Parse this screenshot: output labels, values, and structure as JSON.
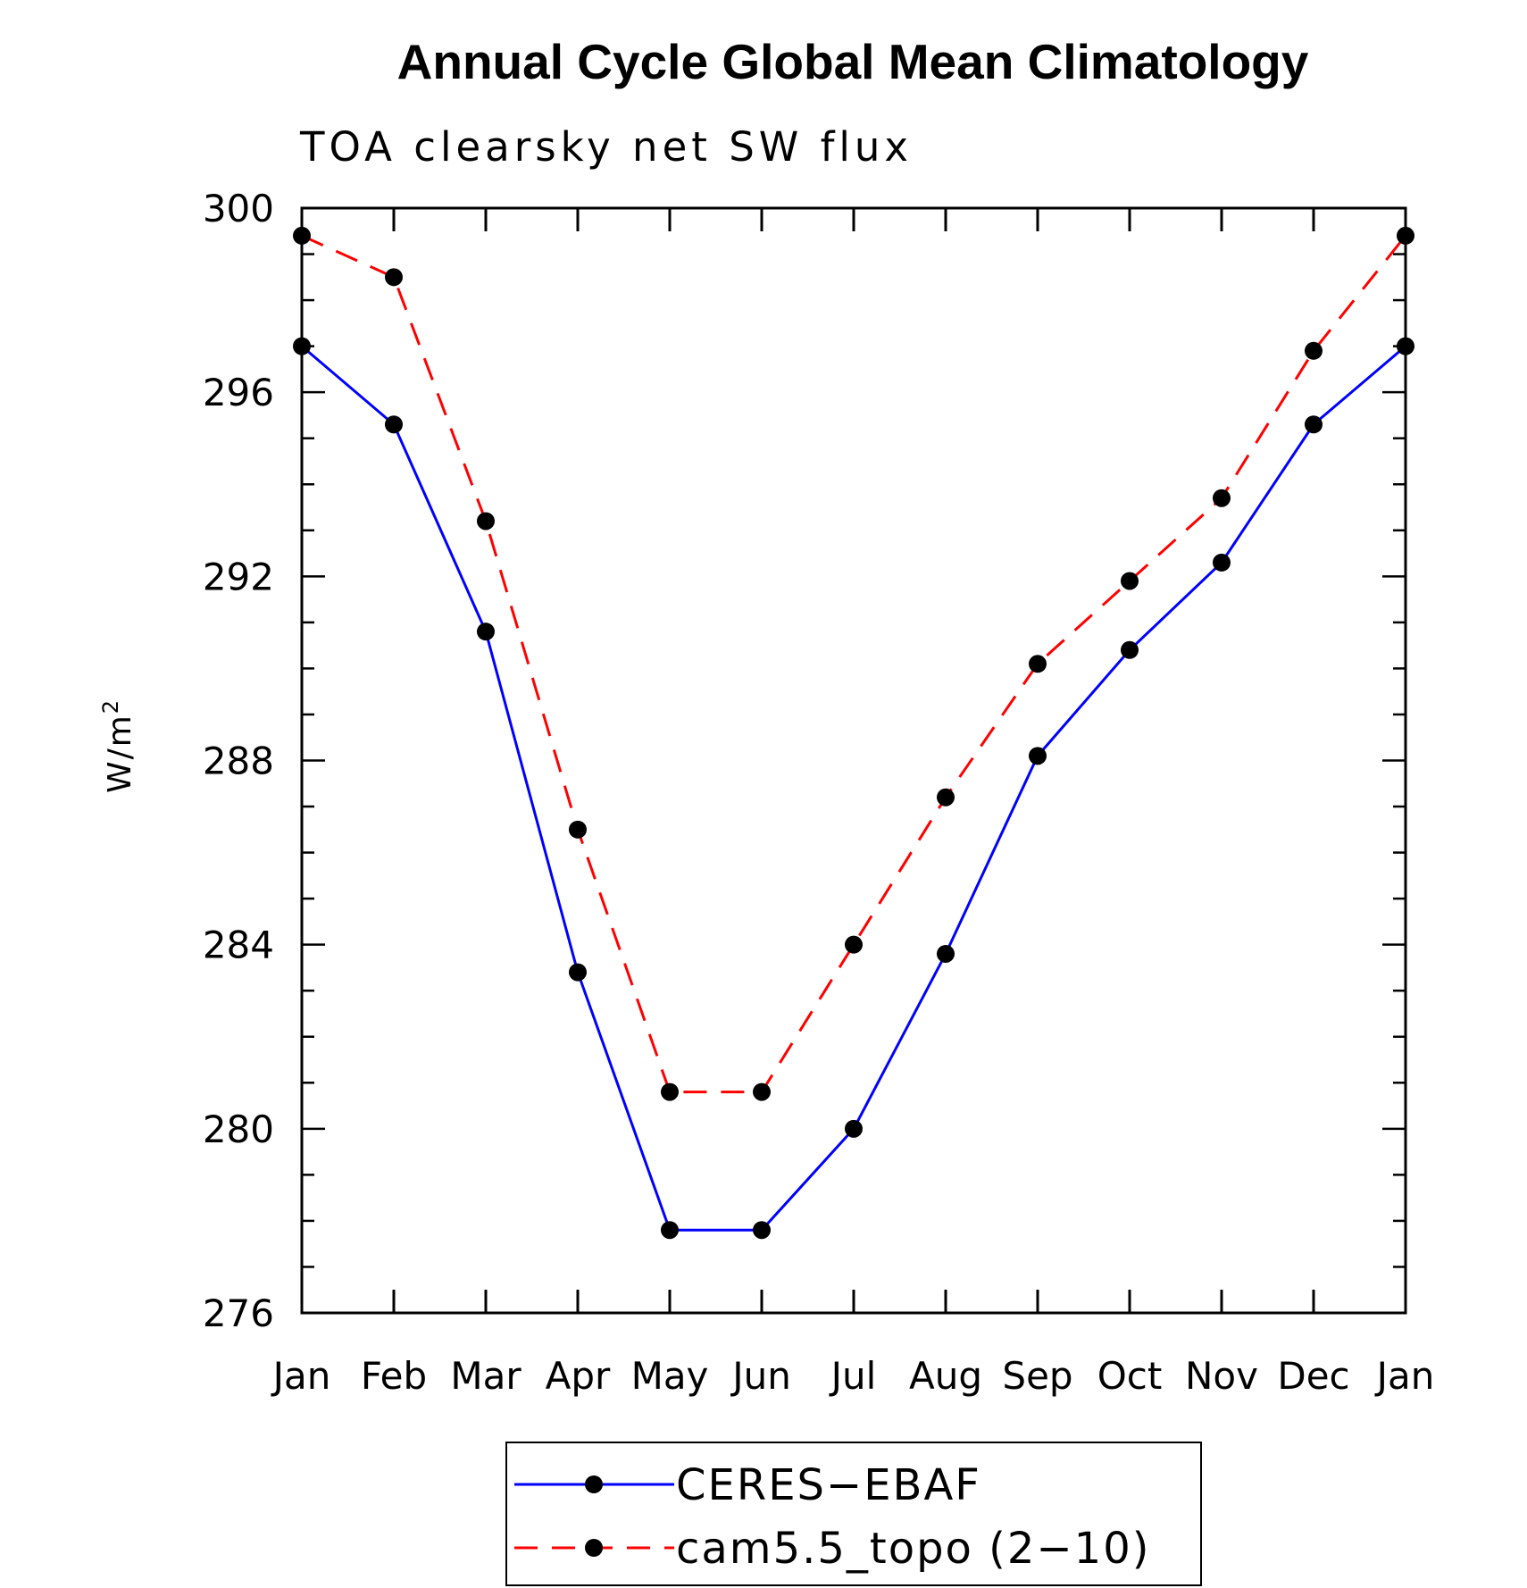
{
  "chart_data": {
    "type": "line",
    "title": "Annual Cycle Global Mean Climatology",
    "subtitle": "TOA clearsky net SW flux",
    "ylabel": "W/m",
    "ylabel_sup": "2",
    "categories": [
      "Jan",
      "Feb",
      "Mar",
      "Apr",
      "May",
      "Jun",
      "Jul",
      "Aug",
      "Sep",
      "Oct",
      "Nov",
      "Dec",
      "Jan"
    ],
    "ylim": [
      276,
      300
    ],
    "yticks": [
      276,
      280,
      284,
      288,
      292,
      296,
      300
    ],
    "grid": false,
    "legend_position": "bottom-center",
    "series": [
      {
        "name": "CERES−EBAF",
        "color": "#0000ff",
        "line_style": "solid",
        "marker": "filled-circle",
        "values": [
          297.0,
          295.3,
          290.8,
          283.4,
          277.8,
          277.8,
          280.0,
          283.8,
          288.1,
          290.4,
          292.3,
          295.3,
          297.0
        ]
      },
      {
        "name": "cam5.5_topo (2−10)",
        "color": "#ff0000",
        "line_style": "dashed",
        "marker": "filled-circle",
        "values": [
          299.4,
          298.5,
          293.2,
          286.5,
          280.8,
          280.8,
          284.0,
          287.2,
          290.1,
          291.9,
          293.7,
          296.9,
          299.4
        ]
      }
    ]
  }
}
